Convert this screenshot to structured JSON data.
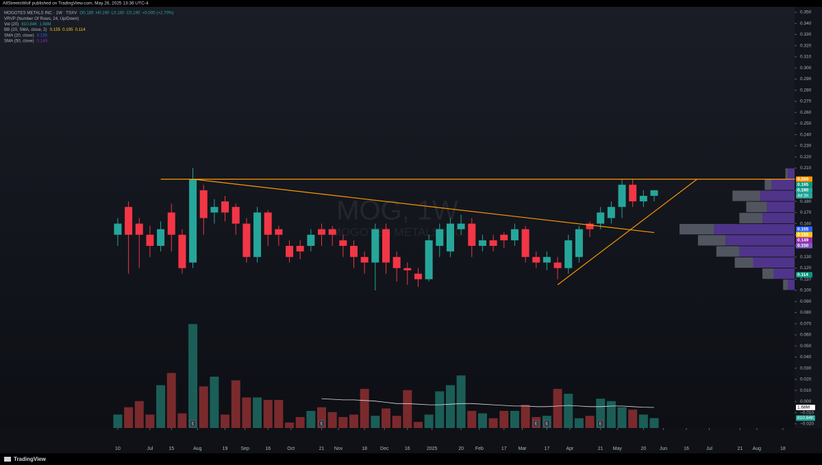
{
  "chart_data": {
    "type": "candlestick",
    "header": "AllStreetsWolf published on TradingView.com, May 26, 2025 13:36 UTC-4",
    "legend": [
      {
        "name": "MOGOTES METALS INC · 1W · TSXV",
        "values": [
          "O0.185",
          "H0.190",
          "L0.180",
          "C0.190",
          "+0.005 (+2.70%)"
        ],
        "color": "#26a69a"
      },
      {
        "name": "VRVP (Number Of Rows, 24, Up/Down)",
        "values": [],
        "color": "#7e57c2"
      },
      {
        "name": "Vol (20)",
        "values": [
          "810.84K",
          "1.68M"
        ],
        "color": "#26a69a"
      },
      {
        "name": "BB (20, SMA, close, 2)",
        "values": [
          "0.155",
          "0.195",
          "0.114"
        ],
        "color": "#f5c518"
      },
      {
        "name": "SMA (20, close)",
        "values": [
          "0.155"
        ],
        "color": "#2962ff"
      },
      {
        "name": "SMA (50, close)",
        "values": [
          "0.149"
        ],
        "color": "#9c27b0"
      }
    ],
    "watermark": "MOG, 1W",
    "watermark_subtitle": "MOGOTES METALS INC",
    "brand": "TradingView",
    "up_color": "#26a69a",
    "down_color": "#f23645",
    "volume_up_color": "#1b5e57",
    "volume_down_color": "#7a2a2c",
    "open": [
      0.15,
      0.175,
      0.16,
      0.15,
      0.14,
      0.17,
      0.15,
      0.125,
      0.19,
      0.17,
      0.18,
      0.175,
      0.16,
      0.13,
      0.17,
      0.155,
      0.14,
      0.14,
      0.14,
      0.155,
      0.155,
      0.145,
      0.14,
      0.13,
      0.125,
      0.155,
      0.13,
      0.12,
      0.115,
      0.11,
      0.14,
      0.135,
      0.155,
      0.16,
      0.14,
      0.145,
      0.15,
      0.145,
      0.155,
      0.13,
      0.125,
      0.125,
      0.12,
      0.13,
      0.16,
      0.16,
      0.165,
      0.175,
      0.195,
      0.18,
      0.185
    ],
    "high": [
      0.165,
      0.18,
      0.165,
      0.158,
      0.162,
      0.178,
      0.155,
      0.21,
      0.195,
      0.182,
      0.185,
      0.178,
      0.165,
      0.175,
      0.172,
      0.158,
      0.145,
      0.145,
      0.155,
      0.16,
      0.158,
      0.15,
      0.145,
      0.135,
      0.16,
      0.16,
      0.135,
      0.125,
      0.12,
      0.15,
      0.16,
      0.165,
      0.168,
      0.165,
      0.15,
      0.15,
      0.152,
      0.16,
      0.158,
      0.135,
      0.135,
      0.13,
      0.15,
      0.158,
      0.162,
      0.175,
      0.18,
      0.2,
      0.2,
      0.19,
      0.19
    ],
    "low": [
      0.14,
      0.115,
      0.12,
      0.13,
      0.135,
      0.135,
      0.115,
      0.12,
      0.15,
      0.16,
      0.162,
      0.15,
      0.125,
      0.125,
      0.14,
      0.14,
      0.125,
      0.128,
      0.135,
      0.14,
      0.14,
      0.13,
      0.12,
      0.115,
      0.1,
      0.115,
      0.108,
      0.105,
      0.103,
      0.108,
      0.13,
      0.13,
      0.15,
      0.13,
      0.135,
      0.135,
      0.138,
      0.14,
      0.125,
      0.12,
      0.118,
      0.11,
      0.115,
      0.125,
      0.148,
      0.155,
      0.16,
      0.165,
      0.175,
      0.175,
      0.18
    ],
    "close": [
      0.16,
      0.15,
      0.15,
      0.14,
      0.155,
      0.15,
      0.12,
      0.2,
      0.165,
      0.175,
      0.17,
      0.16,
      0.13,
      0.17,
      0.15,
      0.15,
      0.13,
      0.135,
      0.15,
      0.15,
      0.15,
      0.14,
      0.13,
      0.125,
      0.155,
      0.125,
      0.12,
      0.118,
      0.11,
      0.145,
      0.155,
      0.16,
      0.16,
      0.14,
      0.145,
      0.14,
      0.145,
      0.155,
      0.13,
      0.125,
      0.13,
      0.12,
      0.145,
      0.155,
      0.155,
      0.17,
      0.175,
      0.195,
      0.18,
      0.185,
      0.19
    ],
    "volume": [
      1100000,
      1700000,
      2200000,
      1100000,
      3500000,
      4500000,
      1200000,
      8500000,
      3400000,
      4200000,
      1100000,
      3900000,
      2500000,
      2500000,
      2300000,
      2300000,
      450000,
      900000,
      1400000,
      1700000,
      1300000,
      900000,
      1100000,
      3200000,
      1000000,
      1600000,
      1000000,
      3100000,
      500000,
      1100000,
      3000000,
      3500000,
      4300000,
      1400000,
      1200000,
      800000,
      1400000,
      1400000,
      1900000,
      900000,
      1000000,
      3200000,
      2800000,
      800000,
      1000000,
      2400000,
      2200000,
      1700000,
      1500000,
      1100000,
      810840
    ],
    "volume_ma": [
      null,
      null,
      null,
      null,
      null,
      null,
      null,
      null,
      null,
      null,
      null,
      null,
      null,
      null,
      null,
      null,
      null,
      null,
      null,
      2400000,
      2350000,
      2300000,
      2300000,
      2250000,
      2200000,
      2100000,
      2000000,
      2000000,
      1950000,
      1900000,
      1900000,
      1950000,
      2000000,
      2000000,
      1950000,
      1900000,
      1850000,
      1800000,
      1800000,
      1750000,
      1750000,
      1800000,
      1850000,
      1800000,
      1750000,
      1750000,
      1800000,
      1800000,
      1750000,
      1700000,
      1680000
    ],
    "volume_lim": [
      0,
      35000000
    ],
    "volume_value_labels": [
      {
        "value": 1680000,
        "label": "1.68M",
        "color": "#ffffff"
      },
      {
        "value": 810840,
        "label": "810.84K",
        "color": "#26a69a"
      }
    ],
    "events": [
      {
        "week": 7,
        "label": "E"
      },
      {
        "week": 19,
        "label": "E"
      },
      {
        "week": 39,
        "label": "E"
      },
      {
        "week": 40,
        "label": "E"
      },
      {
        "week": 45,
        "label": "E"
      }
    ],
    "resistance": {
      "value": 0.2,
      "from_week": 4,
      "color": "#ff9800"
    },
    "trendlines": [
      {
        "from": [
          7,
          0.2
        ],
        "to": [
          50,
          0.152
        ],
        "color": "#ff9800"
      },
      {
        "from": [
          41,
          0.105
        ],
        "to": [
          54,
          0.2
        ],
        "color": "#ff9800"
      }
    ],
    "volume_profile": {
      "prices": [
        0.205,
        0.195,
        0.185,
        0.175,
        0.165,
        0.155,
        0.145,
        0.135,
        0.125,
        0.115,
        0.105
      ],
      "up": [
        0.3,
        1.0,
        1.5,
        1.2,
        1.4,
        3.5,
        3.0,
        2.4,
        1.8,
        0.9,
        0.3
      ],
      "down": [
        0.1,
        0.3,
        1.2,
        0.9,
        1.0,
        1.5,
        1.2,
        1.0,
        0.8,
        0.5,
        0.2
      ],
      "lim": [
        0,
        5
      ],
      "up_color": "#5b3a9e",
      "down_color": "#5d606b"
    },
    "price_labels": [
      {
        "value": 0.2,
        "label": "0.200",
        "color": "#ff9800"
      },
      {
        "value": 0.195,
        "label": "0.195",
        "color": "#089981"
      },
      {
        "value": 0.19,
        "label": "0.190",
        "color": "#26a69a"
      },
      {
        "value": 0.155,
        "label": "0.155",
        "color": "#2962ff"
      },
      {
        "value": 0.155,
        "label": "0.155",
        "color": "#f5c518"
      },
      {
        "value": 0.149,
        "label": "0.149",
        "color": "#9c27b0"
      },
      {
        "value": 0.15,
        "label": "0.150",
        "color": "#7e57c2"
      },
      {
        "value": 0.114,
        "label": "0.114",
        "color": "#089981"
      }
    ],
    "countdown": "4d 3h",
    "xlim": [
      -10.98,
      63.09
    ],
    "xticks": [
      {
        "value": 0,
        "label": "10"
      },
      {
        "value": 3,
        "label": "Jul"
      },
      {
        "value": 5,
        "label": "15"
      },
      {
        "value": 7.43,
        "label": "Aug"
      },
      {
        "value": 10,
        "label": "19"
      },
      {
        "value": 11.86,
        "label": "Sep"
      },
      {
        "value": 14,
        "label": "16"
      },
      {
        "value": 16.14,
        "label": "Oct"
      },
      {
        "value": 19,
        "label": "21"
      },
      {
        "value": 20.57,
        "label": "Nov"
      },
      {
        "value": 23,
        "label": "18"
      },
      {
        "value": 24.86,
        "label": "Dec"
      },
      {
        "value": 27,
        "label": "16"
      },
      {
        "value": 29.29,
        "label": "2025"
      },
      {
        "value": 32,
        "label": "20"
      },
      {
        "value": 33.71,
        "label": "Feb"
      },
      {
        "value": 36,
        "label": "17"
      },
      {
        "value": 37.71,
        "label": "Mar"
      },
      {
        "value": 40,
        "label": "17"
      },
      {
        "value": 42.14,
        "label": "Apr"
      },
      {
        "value": 45,
        "label": "21"
      },
      {
        "value": 46.57,
        "label": "May"
      },
      {
        "value": 49,
        "label": "20"
      },
      {
        "value": 50.86,
        "label": "Jun"
      },
      {
        "value": 53,
        "label": "16"
      },
      {
        "value": 55.14,
        "label": "Jul"
      },
      {
        "value": 58,
        "label": "21"
      },
      {
        "value": 59.57,
        "label": "Aug"
      },
      {
        "value": 62,
        "label": "18"
      }
    ],
    "ylim": [
      -0.0238,
      0.3611
    ],
    "yticks": [
      {
        "value": -0.02,
        "label": "−0.020"
      },
      {
        "value": -0.01,
        "label": "−0.010"
      },
      {
        "value": 0,
        "label": "0.000"
      },
      {
        "value": 0.01,
        "label": "0.010"
      },
      {
        "value": 0.02,
        "label": "0.020"
      },
      {
        "value": 0.03,
        "label": "0.030"
      },
      {
        "value": 0.04,
        "label": "0.040"
      },
      {
        "value": 0.05,
        "label": "0.050"
      },
      {
        "value": 0.06,
        "label": "0.060"
      },
      {
        "value": 0.07,
        "label": "0.070"
      },
      {
        "value": 0.08,
        "label": "0.080"
      },
      {
        "value": 0.09,
        "label": "0.090"
      },
      {
        "value": 0.1,
        "label": "0.100"
      },
      {
        "value": 0.11,
        "label": "0.110"
      },
      {
        "value": 0.12,
        "label": "0.120"
      },
      {
        "value": 0.13,
        "label": "0.130"
      },
      {
        "value": 0.14,
        "label": "0.140"
      },
      {
        "value": 0.15,
        "label": "0.150"
      },
      {
        "value": 0.16,
        "label": "0.160"
      },
      {
        "value": 0.17,
        "label": "0.170"
      },
      {
        "value": 0.18,
        "label": "0.180"
      },
      {
        "value": 0.19,
        "label": "0.190"
      },
      {
        "value": 0.2,
        "label": "0.200"
      },
      {
        "value": 0.21,
        "label": "0.210"
      },
      {
        "value": 0.22,
        "label": "0.220"
      },
      {
        "value": 0.23,
        "label": "0.230"
      },
      {
        "value": 0.24,
        "label": "0.240"
      },
      {
        "value": 0.25,
        "label": "0.250"
      },
      {
        "value": 0.26,
        "label": "0.260"
      },
      {
        "value": 0.27,
        "label": "0.270"
      },
      {
        "value": 0.28,
        "label": "0.280"
      },
      {
        "value": 0.29,
        "label": "0.290"
      },
      {
        "value": 0.3,
        "label": "0.300"
      },
      {
        "value": 0.31,
        "label": "0.310"
      },
      {
        "value": 0.32,
        "label": "0.320"
      },
      {
        "value": 0.33,
        "label": "0.330"
      },
      {
        "value": 0.34,
        "label": "0.340"
      },
      {
        "value": 0.35,
        "label": "0.350"
      }
    ]
  }
}
